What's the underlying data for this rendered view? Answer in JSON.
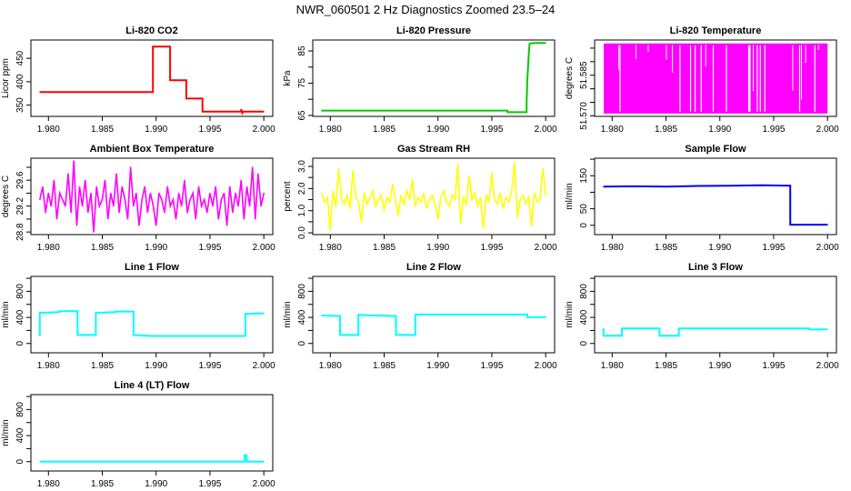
{
  "title": "NWR_060501  2 Hz Diagnostics Zoomed 23.5–24",
  "chart_data": [
    {
      "type": "line",
      "title": "Li-820 CO2",
      "ylabel": "Licor ppm",
      "color": "#ff0000",
      "xlim": [
        1.97837,
        2.00083
      ],
      "ylim": [
        326,
        489
      ],
      "xticks": [
        1.98,
        1.985,
        1.99,
        1.995,
        2.0
      ],
      "xtick_labels": [
        "1.980",
        "1.985",
        "1.990",
        "1.995",
        "2.000"
      ],
      "yticks": [
        350,
        400,
        450
      ],
      "ytick_labels": {
        "350": "350",
        "400": "400",
        "450": "450"
      },
      "points": [
        [
          1.9792,
          378
        ],
        [
          1.9897,
          378
        ],
        [
          1.9897,
          475
        ],
        [
          1.9913,
          475
        ],
        [
          1.9913,
          403
        ],
        [
          1.9928,
          403
        ],
        [
          1.9928,
          364
        ],
        [
          1.9943,
          364
        ],
        [
          1.9943,
          336
        ],
        [
          1.9979,
          336
        ],
        [
          1.9979,
          341
        ],
        [
          1.998,
          333
        ],
        [
          1.9981,
          336
        ],
        [
          2.0,
          336
        ]
      ]
    },
    {
      "type": "line",
      "title": "Li-820 Pressure",
      "ylabel": "kPa",
      "color": "#00cc00",
      "xlim": [
        1.97837,
        2.00083
      ],
      "ylim": [
        64.7,
        88.4
      ],
      "xticks": [
        1.98,
        1.985,
        1.99,
        1.995,
        2.0
      ],
      "xtick_labels": [
        "1.980",
        "1.985",
        "1.990",
        "1.995",
        "2.000"
      ],
      "yticks": [
        65,
        70,
        75,
        80,
        85
      ],
      "ytick_labels": {
        "65": "65",
        "75": "75",
        "85": "85"
      },
      "points": [
        [
          1.9792,
          66.5
        ],
        [
          1.99646,
          66.5
        ],
        [
          1.99646,
          66.0
        ],
        [
          1.99823,
          66.0
        ],
        [
          1.99823,
          69
        ],
        [
          1.9983,
          76
        ],
        [
          1.99838,
          81
        ],
        [
          1.99845,
          85
        ],
        [
          1.99851,
          87.3
        ],
        [
          1.999,
          87.5
        ],
        [
          2.0,
          87.5
        ]
      ]
    },
    {
      "type": "alternating-band",
      "title": "Li-820 Temperature",
      "ylabel": "degrees C",
      "color": "#ff00ff",
      "xlim": [
        1.97837,
        2.00083
      ],
      "ylim": [
        51.5698,
        51.598
      ],
      "xticks": [
        1.98,
        1.985,
        1.99,
        1.995,
        2.0
      ],
      "xtick_labels": [
        "1.980",
        "1.985",
        "1.990",
        "1.995",
        "2.000"
      ],
      "yticks": [
        51.57,
        51.575,
        51.58,
        51.585,
        51.59,
        51.595
      ],
      "ytick_labels": {
        "51.570": "51.570",
        "51.585": "51.585"
      },
      "x_range": [
        1.97922,
        2.0
      ],
      "levels": [
        51.5709,
        51.5967
      ],
      "steady_high": [
        1.98073,
        1.9863,
        1.98728,
        1.98771,
        1.98827,
        1.98939,
        1.99061,
        1.99348,
        1.99376,
        1.99418,
        1.99741,
        1.99882
      ],
      "steady_high_intervals": [
        [
          1.99263,
          1.99285
        ]
      ],
      "single_dips": [
        [
          1.98062,
          51.5871
        ],
        [
          1.98222,
          51.591
        ],
        [
          1.98335,
          51.5936
        ],
        [
          1.98504,
          51.5907
        ],
        [
          1.9856,
          51.586
        ],
        [
          1.98869,
          51.5882
        ],
        [
          1.99311,
          51.5791
        ],
        [
          1.99677,
          51.5793
        ],
        [
          1.99758,
          51.576
        ],
        [
          1.99797,
          51.5896
        ],
        [
          1.99916,
          51.5943
        ]
      ]
    },
    {
      "type": "line",
      "title": "Ambient Box Temperature",
      "ylabel": "degrees C",
      "color": "#ff00ff",
      "xlim": [
        1.97837,
        2.00083
      ],
      "ylim": [
        28.76,
        29.94
      ],
      "xticks": [
        1.98,
        1.985,
        1.99,
        1.995,
        2.0
      ],
      "xtick_labels": [
        "1.980",
        "1.985",
        "1.990",
        "1.995",
        "2.000"
      ],
      "yticks": [
        28.8,
        29.0,
        29.2,
        29.4,
        29.6,
        29.8
      ],
      "ytick_labels": {
        "28.8": "28.8",
        "29.2": "29.2",
        "29.6": "29.6"
      },
      "x_range": [
        1.9792,
        2.0
      ],
      "values": [
        29.3,
        29.5,
        29.1,
        29.4,
        29.2,
        29.6,
        29.0,
        29.4,
        29.3,
        29.2,
        29.7,
        29.1,
        29.9,
        28.9,
        29.5,
        29.2,
        29.6,
        29.1,
        29.4,
        28.8,
        29.5,
        29.2,
        29.3,
        29.6,
        29.0,
        29.4,
        29.2,
        29.7,
        29.1,
        29.5,
        29.3,
        29.0,
        29.8,
        29.2,
        29.4,
        28.9,
        29.3,
        29.5,
        29.1,
        29.4,
        29.2,
        28.9,
        29.4,
        29.3,
        29.1,
        29.5,
        29.2,
        29.3,
        29.0,
        29.4,
        29.2,
        29.6,
        29.1,
        29.3,
        29.4,
        29.0,
        29.5,
        29.2,
        29.3,
        29.1,
        29.4,
        29.2,
        29.5,
        29.0,
        29.3,
        29.4,
        28.9,
        29.5,
        29.1,
        29.4,
        29.2,
        29.6,
        29.0,
        29.5,
        29.2,
        29.8,
        29.0,
        29.7,
        29.2,
        29.4
      ]
    },
    {
      "type": "line",
      "title": "Gas Stream RH",
      "ylabel": "percent",
      "color": "#ffff00",
      "xlim": [
        1.97837,
        2.00083
      ],
      "ylim": [
        -0.08,
        3.37
      ],
      "xticks": [
        1.98,
        1.985,
        1.99,
        1.995,
        2.0
      ],
      "xtick_labels": [
        "1.980",
        "1.985",
        "1.990",
        "1.995",
        "2.000"
      ],
      "yticks": [
        0.0,
        0.5,
        1.0,
        1.5,
        2.0,
        2.5,
        3.0
      ],
      "ytick_labels": {
        "0": "0.0",
        "1": "1.0",
        "2": "2.0",
        "3": "3.0"
      },
      "x_range": [
        1.9792,
        2.0
      ],
      "values": [
        1.8,
        1.4,
        1.6,
        0.1,
        1.9,
        1.2,
        2.9,
        1.5,
        1.3,
        1.7,
        1.1,
        2.8,
        1.6,
        1.4,
        0.5,
        1.8,
        1.3,
        1.6,
        1.9,
        1.2,
        1.5,
        1.7,
        1.0,
        1.6,
        1.4,
        2.2,
        1.5,
        0.8,
        1.7,
        1.3,
        1.9,
        1.5,
        2.4,
        1.2,
        1.6,
        1.4,
        1.8,
        1.1,
        1.5,
        1.7,
        1.3,
        0.6,
        1.6,
        1.9,
        1.4,
        1.2,
        1.7,
        1.5,
        3.1,
        0.4,
        1.6,
        1.3,
        2.6,
        1.5,
        1.8,
        1.2,
        1.6,
        0.2,
        1.7,
        1.4,
        2.7,
        1.5,
        1.3,
        1.8,
        1.1,
        1.6,
        1.4,
        1.9,
        3.2,
        0.7,
        1.5,
        1.7,
        1.3,
        1.6,
        0.3,
        1.8,
        1.4,
        1.5,
        2.9,
        1.7
      ]
    },
    {
      "type": "line",
      "title": "Sample Flow",
      "ylabel": "ml/min",
      "color": "#0000ff",
      "xlim": [
        1.97837,
        2.00083
      ],
      "ylim": [
        -28,
        203
      ],
      "xticks": [
        1.98,
        1.985,
        1.99,
        1.995,
        2.0
      ],
      "xtick_labels": [
        "1.980",
        "1.985",
        "1.990",
        "1.995",
        "2.000"
      ],
      "yticks": [
        0,
        50,
        100,
        150,
        200
      ],
      "ytick_labels": {
        "0": "0",
        "50": "50",
        "150": "150"
      },
      "points": [
        [
          1.9792,
          117
        ],
        [
          1.982,
          118
        ],
        [
          1.985,
          117
        ],
        [
          1.988,
          119
        ],
        [
          1.991,
          120
        ],
        [
          1.994,
          121
        ],
        [
          1.99654,
          120
        ],
        [
          1.99654,
          2
        ],
        [
          2.0,
          2
        ]
      ]
    },
    {
      "type": "line",
      "title": "Line 1 Flow",
      "ylabel": "ml/min",
      "color": "#00ffff",
      "xlim": [
        1.97837,
        2.00083
      ],
      "ylim": [
        -143,
        1029
      ],
      "xticks": [
        1.98,
        1.985,
        1.99,
        1.995,
        2.0
      ],
      "xtick_labels": [
        "1.980",
        "1.985",
        "1.990",
        "1.995",
        "2.000"
      ],
      "yticks": [
        0,
        200,
        400,
        600,
        800,
        1000
      ],
      "ytick_labels": {
        "0": "0",
        "400": "400",
        "800": "800"
      },
      "points": [
        [
          1.9792,
          120
        ],
        [
          1.9792,
          470
        ],
        [
          1.981,
          480
        ],
        [
          1.981,
          495
        ],
        [
          1.9827,
          495
        ],
        [
          1.9827,
          130
        ],
        [
          1.9844,
          130
        ],
        [
          1.9844,
          470
        ],
        [
          1.9862,
          480
        ],
        [
          1.9862,
          490
        ],
        [
          1.9879,
          490
        ],
        [
          1.9879,
          130
        ],
        [
          1.9895,
          115
        ],
        [
          1.9983,
          115
        ],
        [
          1.9983,
          455
        ],
        [
          2.0,
          462
        ]
      ]
    },
    {
      "type": "line",
      "title": "Line 2 Flow",
      "ylabel": "ml/min",
      "color": "#00ffff",
      "xlim": [
        1.97837,
        2.00083
      ],
      "ylim": [
        -143,
        1029
      ],
      "xticks": [
        1.98,
        1.985,
        1.99,
        1.995,
        2.0
      ],
      "xtick_labels": [
        "1.980",
        "1.985",
        "1.990",
        "1.995",
        "2.000"
      ],
      "yticks": [
        0,
        200,
        400,
        600,
        800,
        1000
      ],
      "ytick_labels": {
        "0": "0",
        "400": "400",
        "800": "800"
      },
      "points": [
        [
          1.9792,
          430
        ],
        [
          1.9809,
          420
        ],
        [
          1.9809,
          130
        ],
        [
          1.9826,
          130
        ],
        [
          1.9826,
          440
        ],
        [
          1.9838,
          430
        ],
        [
          1.9861,
          420
        ],
        [
          1.9861,
          130
        ],
        [
          1.9879,
          130
        ],
        [
          1.9879,
          445
        ],
        [
          1.9983,
          445
        ],
        [
          1.9983,
          400
        ],
        [
          2.0,
          405
        ]
      ]
    },
    {
      "type": "line",
      "title": "Line 3 Flow",
      "ylabel": "ml/min",
      "color": "#00ffff",
      "xlim": [
        1.97837,
        2.00083
      ],
      "ylim": [
        -143,
        1029
      ],
      "xticks": [
        1.98,
        1.985,
        1.99,
        1.995,
        2.0
      ],
      "xtick_labels": [
        "1.980",
        "1.985",
        "1.990",
        "1.995",
        "2.000"
      ],
      "yticks": [
        0,
        200,
        400,
        600,
        800,
        1000
      ],
      "ytick_labels": {
        "0": "0",
        "400": "400",
        "800": "800"
      },
      "points": [
        [
          1.9792,
          229
        ],
        [
          1.9792,
          119
        ],
        [
          1.9809,
          119
        ],
        [
          1.9809,
          229
        ],
        [
          1.9844,
          229
        ],
        [
          1.9844,
          119
        ],
        [
          1.9862,
          119
        ],
        [
          1.9862,
          229
        ],
        [
          1.9983,
          229
        ],
        [
          1.9983,
          214
        ],
        [
          2.0,
          216
        ]
      ]
    },
    {
      "type": "line",
      "title": "Line 4 (LT) Flow",
      "ylabel": "ml/min",
      "color": "#00ffff",
      "xlim": [
        1.97837,
        2.00083
      ],
      "ylim": [
        -143,
        1029
      ],
      "xticks": [
        1.98,
        1.985,
        1.99,
        1.995,
        2.0
      ],
      "xtick_labels": [
        "1.980",
        "1.985",
        "1.990",
        "1.995",
        "2.000"
      ],
      "yticks": [
        0,
        200,
        400,
        600,
        800,
        1000
      ],
      "ytick_labels": {
        "0": "0",
        "400": "400",
        "800": "800"
      },
      "points": [
        [
          1.9792,
          0
        ],
        [
          1.9982,
          0
        ],
        [
          1.9982,
          100
        ],
        [
          1.9984,
          100
        ],
        [
          1.9984,
          0
        ],
        [
          2.0,
          0
        ]
      ]
    }
  ]
}
